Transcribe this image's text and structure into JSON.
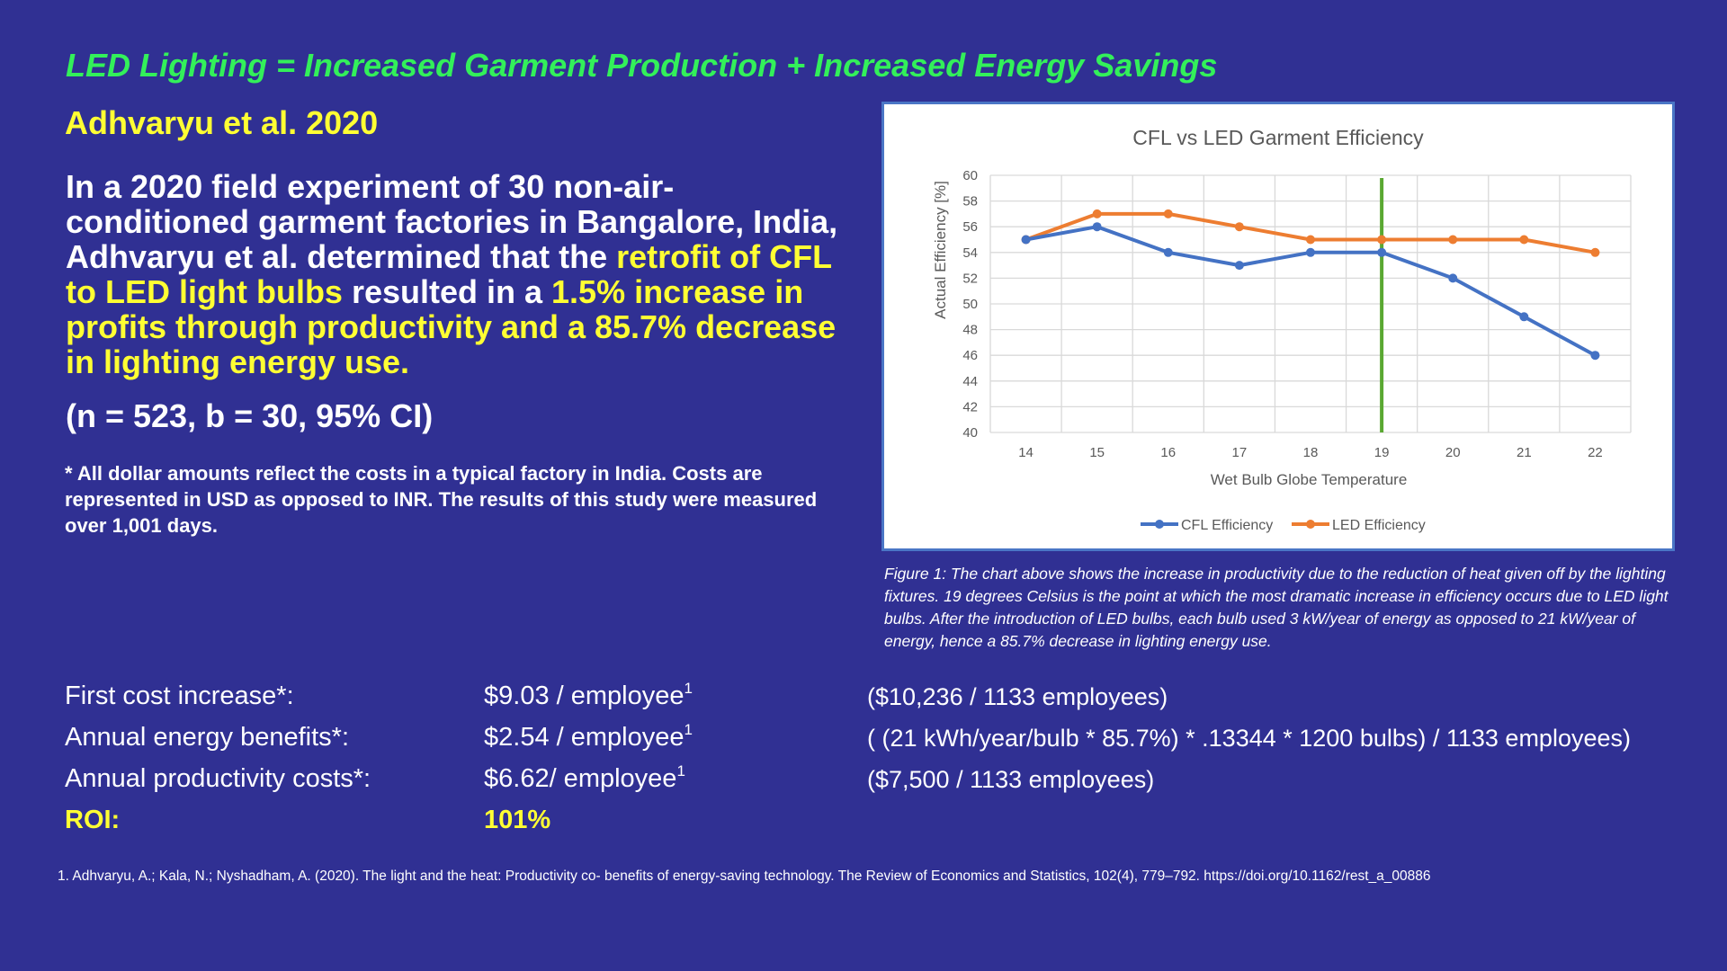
{
  "slide": {
    "title": "LED Lighting = Increased Garment Production + Increased Energy Savings",
    "subtitle": "Adhvaryu et al. 2020",
    "body_parts": [
      {
        "text": "In a 2020 field experiment of 30 non-air-conditioned garment factories in Bangalore, India, Adhvaryu et al. determined that the ",
        "highlight": false
      },
      {
        "text": "retrofit of CFL to LED light bulbs",
        "highlight": true
      },
      {
        "text": " resulted in a ",
        "highlight": false
      },
      {
        "text": "1.5% increase in profits through productivity and a 85.7% decrease in lighting energy use.",
        "highlight": true
      }
    ],
    "stats": "(n = 523, b = 30, 95% CI)",
    "note": "* All dollar amounts reflect the costs in a typical factory in India. Costs are represented in USD as opposed to INR. The results of this study were measured over 1,001 days.",
    "caption": "Figure 1: The chart above shows the increase in productivity due to the reduction of heat given off by the lighting fixtures. 19 degrees Celsius is the point at which the most dramatic increase in efficiency occurs due to LED light bulbs. After the introduction of LED bulbs, each bulb used 3 kW/year of energy as opposed to 21 kW/year of energy, hence a 85.7% decrease in lighting energy use.",
    "costs": [
      {
        "label": "First cost increase*:",
        "value": "$9.03 / employee",
        "sup": "1",
        "calc": "($10,236 / 1133 employees)"
      },
      {
        "label": "Annual energy benefits*:",
        "value": "$2.54 / employee",
        "sup": "1",
        "calc": "( (21 kWh/year/bulb * 85.7%) * .13344  * 1200 bulbs) / 1133 employees)"
      },
      {
        "label": "Annual productivity costs*:",
        "value": "$6.62/ employee",
        "sup": "1",
        "calc": "($7,500 / 1133 employees)"
      }
    ],
    "roi": {
      "label": "ROI:",
      "value": "101%"
    },
    "reference": "1. Adhvaryu, A.; Kala, N.; Nyshadham, A. (2020). The light and the heat: Productivity co- benefits of energy-saving technology. The Review of Economics and Statistics, 102(4), 779–792. https://doi.org/10.1162/rest_a_00886"
  },
  "colors": {
    "background": "#303093",
    "title_green": "#33f05a",
    "highlight_yellow": "#ffff33",
    "cfl_series": "#4472c4",
    "led_series": "#ed7d31",
    "marker_line": "#5aa832"
  },
  "chart_data": {
    "type": "line",
    "title": "CFL vs LED Garment Efficiency",
    "xlabel": "Wet Bulb Globe Temperature",
    "ylabel": "Actual Efficiency [%]",
    "x": [
      14,
      15,
      16,
      17,
      18,
      19,
      20,
      21,
      22
    ],
    "ylim": [
      40,
      60
    ],
    "yticks": [
      40,
      42,
      44,
      46,
      48,
      50,
      52,
      54,
      56,
      58,
      60
    ],
    "grid": true,
    "legend": "bottom",
    "series": [
      {
        "name": "CFL Efficiency",
        "values": [
          55,
          56,
          54,
          53,
          54,
          54,
          52,
          49,
          46
        ]
      },
      {
        "name": "LED Efficiency",
        "values": [
          55,
          57,
          57,
          56,
          55,
          55,
          55,
          55,
          54
        ]
      }
    ],
    "vertical_marker_x": 19
  }
}
